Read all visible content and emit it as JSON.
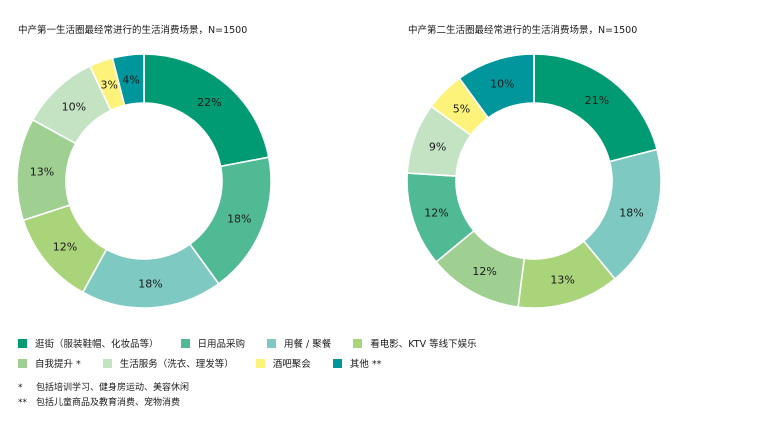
{
  "colors": {
    "s1": "#009b72",
    "s2": "#4fba94",
    "s3": "#7ecac2",
    "s4": "#a9d47a",
    "s5": "#9fd092",
    "s6": "#c3e3c3",
    "s7": "#fdf27a",
    "s8": "#00969c"
  },
  "chart_data": [
    {
      "type": "pie",
      "title": "中产第一生活圈最经常进行的生活消费场景，N=1500",
      "segments": [
        {
          "label": "逛街（服装鞋帽、化妆品等）",
          "value": 22,
          "text": "22%",
          "color_key": "s1"
        },
        {
          "label": "日用品采购",
          "value": 18,
          "text": "18%",
          "color_key": "s2"
        },
        {
          "label": "用餐 / 聚餐",
          "value": 18,
          "text": "18%",
          "color_key": "s3"
        },
        {
          "label": "看电影、KTV 等线下娱乐",
          "value": 12,
          "text": "12%",
          "color_key": "s4"
        },
        {
          "label": "自我提升 *",
          "value": 13,
          "text": "13%",
          "color_key": "s5"
        },
        {
          "label": "生活服务（洗衣、理发等）",
          "value": 10,
          "text": "10%",
          "color_key": "s6"
        },
        {
          "label": "酒吧聚会",
          "value": 3,
          "text": "3%",
          "color_key": "s7"
        },
        {
          "label": "其他 **",
          "value": 4,
          "text": "4%",
          "color_key": "s8"
        }
      ]
    },
    {
      "type": "pie",
      "title": "中产第二生活圈最经常进行的生活消费场景，N=1500",
      "segments": [
        {
          "label": "逛街（服装鞋帽、化妆品等）",
          "value": 21,
          "text": "21%",
          "color_key": "s1"
        },
        {
          "label": "日用品采购",
          "value": 18,
          "text": "18%",
          "color_key": "s3"
        },
        {
          "label": "用餐 / 聚餐",
          "value": 13,
          "text": "13%",
          "color_key": "s4"
        },
        {
          "label": "看电影、KTV 等线下娱乐",
          "value": 12,
          "text": "12%",
          "color_key": "s5"
        },
        {
          "label": "自我提升 *",
          "value": 12,
          "text": "12%",
          "color_key": "s2"
        },
        {
          "label": "生活服务（洗衣、理发等）",
          "value": 9,
          "text": "9%",
          "color_key": "s6"
        },
        {
          "label": "酒吧聚会",
          "value": 5,
          "text": "5%",
          "color_key": "s7"
        },
        {
          "label": "其他 **",
          "value": 10,
          "text": "10%",
          "color_key": "s8"
        }
      ]
    }
  ],
  "legend": [
    [
      {
        "label": "逛街（服装鞋帽、化妆品等）",
        "color_key": "s1"
      },
      {
        "label": "日用品采购",
        "color_key": "s2"
      },
      {
        "label": "用餐 / 聚餐",
        "color_key": "s3"
      },
      {
        "label": "看电影、KTV 等线下娱乐",
        "color_key": "s4"
      }
    ],
    [
      {
        "label": "自我提升 *",
        "color_key": "s5"
      },
      {
        "label": "生活服务（洗衣、理发等）",
        "color_key": "s6"
      },
      {
        "label": "酒吧聚会",
        "color_key": "s7"
      },
      {
        "label": "其他 **",
        "color_key": "s8"
      }
    ]
  ],
  "footnotes": [
    {
      "mark": "*",
      "text": "包括培训学习、健身房运动、美容休闲"
    },
    {
      "mark": "**",
      "text": "包括儿童商品及教育消费、宠物消费"
    }
  ]
}
